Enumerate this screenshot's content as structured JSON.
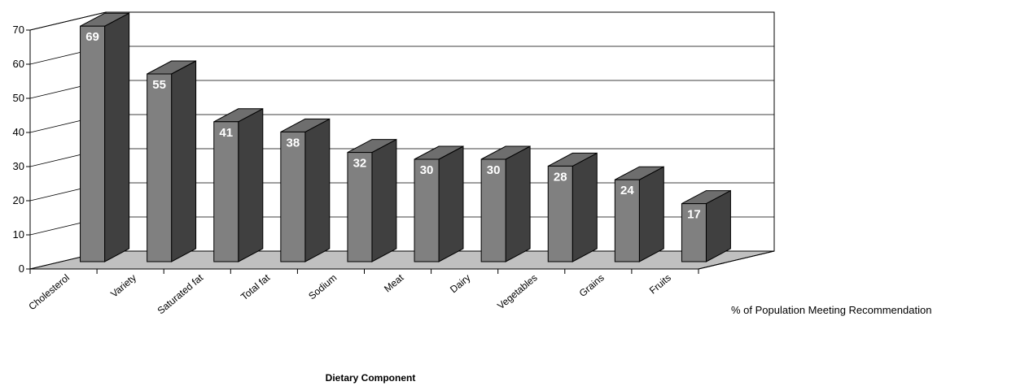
{
  "chart_data": {
    "type": "bar",
    "categories": [
      "Cholesterol",
      "Variety",
      "Saturated fat",
      "Total fat",
      "Sodium",
      "Meat",
      "Dairy",
      "Vegetables",
      "Grains",
      "Fruits"
    ],
    "series": [
      {
        "name": "% of Population Meeting Recommendation",
        "values": [
          69,
          55,
          41,
          38,
          32,
          30,
          30,
          28,
          24,
          17
        ]
      }
    ],
    "xlabel": "Dietary Component",
    "ylabel": "",
    "ylim": [
      0,
      70
    ],
    "yticks": [
      0,
      10,
      20,
      30,
      40,
      50,
      60,
      70
    ],
    "grid": true,
    "three_d": true,
    "colors": {
      "bar_front": "#808080",
      "bar_side": "#404040",
      "bar_top": "#6e6e6e",
      "floor": "#c0c0c0",
      "label": "#ffffff"
    }
  }
}
